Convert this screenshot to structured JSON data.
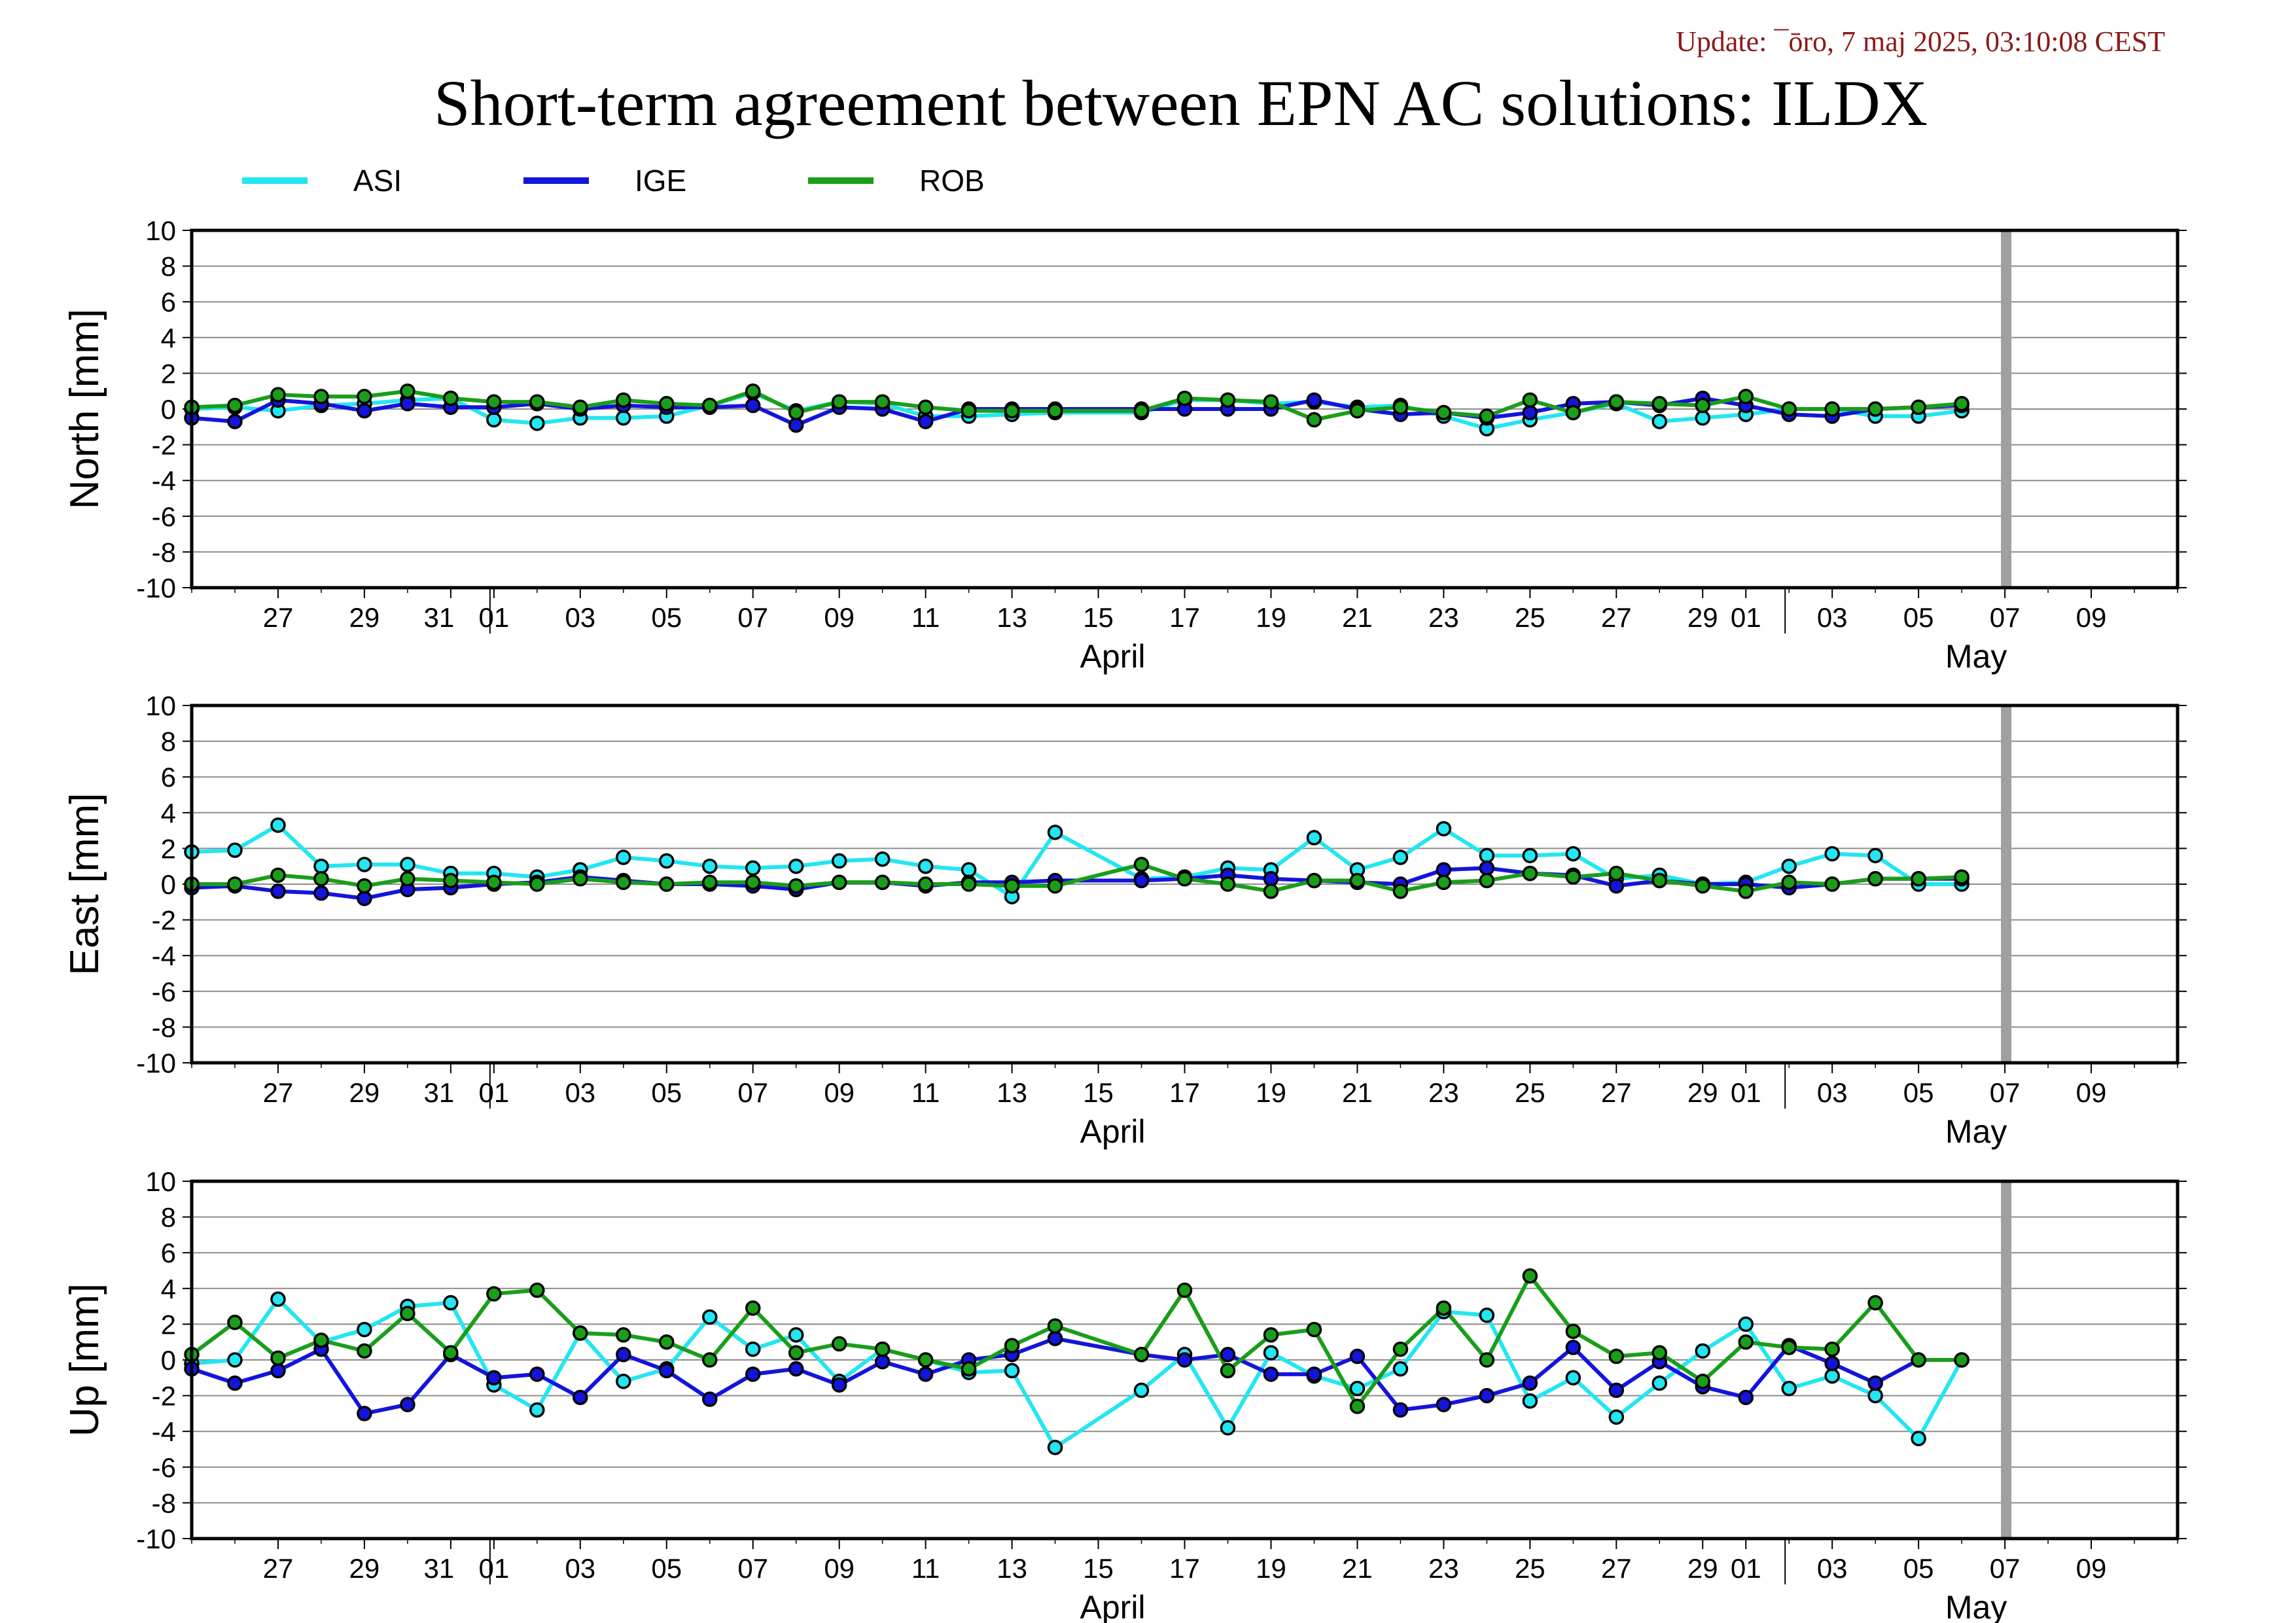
{
  "header": {
    "update": "Update: ¯ōro, 7 maj 2025, 03:10:08 CEST",
    "title": "Short-term agreement between EPN AC solutions: ILDX"
  },
  "legend": [
    {
      "name": "ASI",
      "color": "#22e6f2"
    },
    {
      "name": "IGE",
      "color": "#1414dc"
    },
    {
      "name": "ROB",
      "color": "#1a9e1a"
    }
  ],
  "month_labels": [
    {
      "label": "April",
      "day_index": 21
    },
    {
      "label": "May",
      "day_index": 41
    }
  ],
  "x_ticks": [
    "27",
    "29",
    "31",
    "01",
    "03",
    "05",
    "07",
    "09",
    "11",
    "13",
    "15",
    "17",
    "19",
    "21",
    "23",
    "25",
    "27",
    "29",
    "01",
    "03",
    "05",
    "07",
    "09"
  ],
  "chart_data": [
    {
      "type": "line",
      "ylabel": "North [mm]",
      "ylim": [
        -10,
        10
      ],
      "yticks": [
        10,
        8,
        6,
        4,
        2,
        0,
        -2,
        -4,
        -6,
        -8,
        -10
      ],
      "x_start": "2025-03-25",
      "x_end": "2025-05-10",
      "current_date_marker": "2025-05-06",
      "grid": "horizontal",
      "series": [
        {
          "name": "ASI",
          "x": [
            "03-25",
            "03-26",
            "03-27",
            "03-28",
            "03-29",
            "03-30",
            "03-31",
            "04-01",
            "04-02",
            "04-03",
            "04-04",
            "04-05",
            "04-06",
            "04-07",
            "04-08",
            "04-09",
            "04-10",
            "04-11",
            "04-12",
            "04-13",
            "04-14",
            "04-16",
            "04-17",
            "04-18",
            "04-19",
            "04-20",
            "04-21",
            "04-22",
            "04-23",
            "04-24",
            "04-25",
            "04-26",
            "04-27",
            "04-28",
            "04-29",
            "04-30",
            "05-01",
            "05-02",
            "05-03",
            "05-04",
            "05-05"
          ],
          "values": [
            0.0,
            0.1,
            -0.1,
            0.2,
            0.3,
            0.5,
            0.6,
            -0.6,
            -0.8,
            -0.5,
            -0.5,
            -0.4,
            0.2,
            0.9,
            -0.1,
            0.4,
            0.3,
            -0.4,
            -0.4,
            -0.3,
            -0.2,
            -0.2,
            0.5,
            0.5,
            0.3,
            0.4,
            0.1,
            0.2,
            -0.4,
            -1.1,
            -0.6,
            -0.2,
            0.3,
            -0.7,
            -0.5,
            -0.3,
            0.0,
            0.0,
            -0.4,
            -0.4,
            -0.1
          ]
        },
        {
          "name": "IGE",
          "x": [
            "03-25",
            "03-26",
            "03-27",
            "03-28",
            "03-29",
            "03-30",
            "03-31",
            "04-01",
            "04-02",
            "04-03",
            "04-04",
            "04-05",
            "04-06",
            "04-07",
            "04-08",
            "04-09",
            "04-10",
            "04-11",
            "04-12",
            "04-13",
            "04-14",
            "04-16",
            "04-17",
            "04-18",
            "04-19",
            "04-20",
            "04-21",
            "04-22",
            "04-23",
            "04-24",
            "04-25",
            "04-26",
            "04-27",
            "04-28",
            "04-29",
            "04-30",
            "05-01",
            "05-02",
            "05-03",
            "05-04",
            "05-05"
          ],
          "values": [
            -0.5,
            -0.7,
            0.5,
            0.3,
            -0.1,
            0.3,
            0.1,
            0.1,
            0.3,
            0.0,
            0.2,
            0.1,
            0.1,
            0.2,
            -0.9,
            0.1,
            0.0,
            -0.7,
            0.0,
            0.0,
            0.0,
            0.0,
            0.0,
            0.0,
            0.0,
            0.5,
            0.0,
            -0.3,
            -0.2,
            -0.5,
            -0.2,
            0.3,
            0.4,
            0.2,
            0.6,
            0.2,
            -0.3,
            -0.4,
            0.0,
            0.1,
            0.2
          ]
        },
        {
          "name": "ROB",
          "x": [
            "03-25",
            "03-26",
            "03-27",
            "03-28",
            "03-29",
            "03-30",
            "03-31",
            "04-01",
            "04-02",
            "04-03",
            "04-04",
            "04-05",
            "04-06",
            "04-07",
            "04-08",
            "04-09",
            "04-10",
            "04-11",
            "04-12",
            "04-13",
            "04-14",
            "04-16",
            "04-17",
            "04-18",
            "04-19",
            "04-20",
            "04-21",
            "04-22",
            "04-23",
            "04-24",
            "04-25",
            "04-26",
            "04-27",
            "04-28",
            "04-29",
            "04-30",
            "05-01",
            "05-02",
            "05-03",
            "05-04",
            "05-05"
          ],
          "values": [
            0.1,
            0.2,
            0.8,
            0.7,
            0.7,
            1.0,
            0.6,
            0.4,
            0.4,
            0.1,
            0.5,
            0.3,
            0.2,
            1.0,
            -0.2,
            0.4,
            0.4,
            0.1,
            -0.1,
            -0.1,
            -0.1,
            -0.1,
            0.6,
            0.5,
            0.4,
            -0.6,
            -0.1,
            0.1,
            -0.2,
            -0.4,
            0.5,
            -0.2,
            0.4,
            0.3,
            0.2,
            0.7,
            0.0,
            0.0,
            0.0,
            0.1,
            0.3
          ]
        }
      ]
    },
    {
      "type": "line",
      "ylabel": "East [mm]",
      "ylim": [
        -10,
        10
      ],
      "yticks": [
        10,
        8,
        6,
        4,
        2,
        0,
        -2,
        -4,
        -6,
        -8,
        -10
      ],
      "x_start": "2025-03-25",
      "x_end": "2025-05-10",
      "current_date_marker": "2025-05-06",
      "grid": "horizontal",
      "series": [
        {
          "name": "ASI",
          "x": [
            "03-25",
            "03-26",
            "03-27",
            "03-28",
            "03-29",
            "03-30",
            "03-31",
            "04-01",
            "04-02",
            "04-03",
            "04-04",
            "04-05",
            "04-06",
            "04-07",
            "04-08",
            "04-09",
            "04-10",
            "04-11",
            "04-12",
            "04-13",
            "04-14",
            "04-16",
            "04-17",
            "04-18",
            "04-19",
            "04-20",
            "04-21",
            "04-22",
            "04-23",
            "04-24",
            "04-25",
            "04-26",
            "04-27",
            "04-28",
            "04-29",
            "04-30",
            "05-01",
            "05-02",
            "05-03",
            "05-04",
            "05-05"
          ],
          "values": [
            1.8,
            1.9,
            3.3,
            1.0,
            1.1,
            1.1,
            0.6,
            0.6,
            0.4,
            0.8,
            1.5,
            1.3,
            1.0,
            0.9,
            1.0,
            1.3,
            1.4,
            1.0,
            0.8,
            -0.7,
            2.9,
            0.3,
            0.4,
            0.9,
            0.8,
            2.6,
            0.8,
            1.5,
            3.1,
            1.6,
            1.6,
            1.7,
            0.3,
            0.5,
            0.0,
            0.1,
            1.0,
            1.7,
            1.6,
            0.0,
            0.0
          ]
        },
        {
          "name": "IGE",
          "x": [
            "03-25",
            "03-26",
            "03-27",
            "03-28",
            "03-29",
            "03-30",
            "03-31",
            "04-01",
            "04-02",
            "04-03",
            "04-04",
            "04-05",
            "04-06",
            "04-07",
            "04-08",
            "04-09",
            "04-10",
            "04-11",
            "04-12",
            "04-13",
            "04-14",
            "04-16",
            "04-17",
            "04-18",
            "04-19",
            "04-20",
            "04-21",
            "04-22",
            "04-23",
            "04-24",
            "04-25",
            "04-26",
            "04-27",
            "04-28",
            "04-29",
            "04-30",
            "05-01",
            "05-02",
            "05-03",
            "05-04",
            "05-05"
          ],
          "values": [
            -0.2,
            -0.1,
            -0.4,
            -0.5,
            -0.8,
            -0.3,
            -0.2,
            0.0,
            0.1,
            0.4,
            0.2,
            0.0,
            0.0,
            -0.1,
            -0.3,
            0.1,
            0.1,
            -0.1,
            0.1,
            0.1,
            0.2,
            0.2,
            0.3,
            0.5,
            0.3,
            0.2,
            0.1,
            0.0,
            0.8,
            0.9,
            0.6,
            0.5,
            -0.1,
            0.2,
            0.0,
            0.0,
            -0.2,
            0.0,
            0.3,
            0.3,
            0.3
          ]
        },
        {
          "name": "ROB",
          "x": [
            "03-25",
            "03-26",
            "03-27",
            "03-28",
            "03-29",
            "03-30",
            "03-31",
            "04-01",
            "04-02",
            "04-03",
            "04-04",
            "04-05",
            "04-06",
            "04-07",
            "04-08",
            "04-09",
            "04-10",
            "04-11",
            "04-12",
            "04-13",
            "04-14",
            "04-16",
            "04-17",
            "04-18",
            "04-19",
            "04-20",
            "04-21",
            "04-22",
            "04-23",
            "04-24",
            "04-25",
            "04-26",
            "04-27",
            "04-28",
            "04-29",
            "04-30",
            "05-01",
            "05-02",
            "05-03",
            "05-04",
            "05-05"
          ],
          "values": [
            0.0,
            0.0,
            0.5,
            0.3,
            -0.1,
            0.3,
            0.2,
            0.1,
            0.0,
            0.3,
            0.1,
            0.0,
            0.1,
            0.1,
            -0.1,
            0.1,
            0.1,
            0.0,
            0.0,
            -0.1,
            -0.1,
            1.1,
            0.3,
            0.0,
            -0.4,
            0.2,
            0.2,
            -0.4,
            0.1,
            0.2,
            0.6,
            0.4,
            0.6,
            0.2,
            -0.1,
            -0.4,
            0.1,
            0.0,
            0.3,
            0.3,
            0.4
          ]
        }
      ]
    },
    {
      "type": "line",
      "ylabel": "Up [mm]",
      "ylim": [
        -10,
        10
      ],
      "yticks": [
        10,
        8,
        6,
        4,
        2,
        0,
        -2,
        -4,
        -6,
        -8,
        -10
      ],
      "x_start": "2025-03-25",
      "x_end": "2025-05-10",
      "current_date_marker": "2025-05-06",
      "grid": "horizontal",
      "series": [
        {
          "name": "ASI",
          "x": [
            "03-25",
            "03-26",
            "03-27",
            "03-28",
            "03-29",
            "03-30",
            "03-31",
            "04-01",
            "04-02",
            "04-03",
            "04-04",
            "04-05",
            "04-06",
            "04-07",
            "04-08",
            "04-09",
            "04-10",
            "04-11",
            "04-12",
            "04-13",
            "04-14",
            "04-16",
            "04-17",
            "04-18",
            "04-19",
            "04-20",
            "04-21",
            "04-22",
            "04-23",
            "04-24",
            "04-25",
            "04-26",
            "04-27",
            "04-28",
            "04-29",
            "04-30",
            "05-01",
            "05-02",
            "05-03",
            "05-04",
            "05-05"
          ],
          "values": [
            -0.2,
            0.0,
            3.4,
            1.0,
            1.7,
            3.0,
            3.2,
            -1.4,
            -2.8,
            1.5,
            -1.2,
            -0.5,
            2.4,
            0.6,
            1.4,
            -1.2,
            0.6,
            0.0,
            -0.7,
            -0.6,
            -4.9,
            -1.7,
            0.3,
            -3.8,
            0.4,
            -0.9,
            -1.6,
            -0.5,
            2.7,
            2.5,
            -2.3,
            -1.0,
            -3.2,
            -1.3,
            0.5,
            2.0,
            -1.6,
            -0.9,
            -2.0,
            -4.4,
            0.0
          ]
        },
        {
          "name": "IGE",
          "x": [
            "03-25",
            "03-26",
            "03-27",
            "03-28",
            "03-29",
            "03-30",
            "03-31",
            "04-01",
            "04-02",
            "04-03",
            "04-04",
            "04-05",
            "04-06",
            "04-07",
            "04-08",
            "04-09",
            "04-10",
            "04-11",
            "04-12",
            "04-13",
            "04-14",
            "04-16",
            "04-17",
            "04-18",
            "04-19",
            "04-20",
            "04-21",
            "04-22",
            "04-23",
            "04-24",
            "04-25",
            "04-26",
            "04-27",
            "04-28",
            "04-29",
            "04-30",
            "05-01",
            "05-02",
            "05-03",
            "05-04",
            "05-05"
          ],
          "values": [
            -0.5,
            -1.3,
            -0.6,
            0.6,
            -3.0,
            -2.5,
            0.3,
            -1.0,
            -0.8,
            -2.1,
            0.3,
            -0.6,
            -2.2,
            -0.8,
            -0.5,
            -1.4,
            -0.1,
            -0.8,
            0.0,
            0.3,
            1.2,
            0.3,
            0.0,
            0.3,
            -0.8,
            -0.8,
            0.2,
            -2.8,
            -2.5,
            -2.0,
            -1.3,
            0.7,
            -1.7,
            -0.1,
            -1.5,
            -2.1,
            0.8,
            -0.2,
            -1.3,
            0.0,
            0.0
          ]
        },
        {
          "name": "ROB",
          "x": [
            "03-25",
            "03-26",
            "03-27",
            "03-28",
            "03-29",
            "03-30",
            "03-31",
            "04-01",
            "04-02",
            "04-03",
            "04-04",
            "04-05",
            "04-06",
            "04-07",
            "04-08",
            "04-09",
            "04-10",
            "04-11",
            "04-12",
            "04-13",
            "04-14",
            "04-16",
            "04-17",
            "04-18",
            "04-19",
            "04-20",
            "04-21",
            "04-22",
            "04-23",
            "04-24",
            "04-25",
            "04-26",
            "04-27",
            "04-28",
            "04-29",
            "04-30",
            "05-01",
            "05-02",
            "05-03",
            "05-04",
            "05-05"
          ],
          "values": [
            0.3,
            2.1,
            0.1,
            1.1,
            0.5,
            2.6,
            0.4,
            3.7,
            3.9,
            1.5,
            1.4,
            1.0,
            0.0,
            2.9,
            0.4,
            0.9,
            0.6,
            0.0,
            -0.5,
            0.8,
            1.9,
            0.3,
            3.9,
            -0.6,
            1.4,
            1.7,
            -2.6,
            0.6,
            2.9,
            0.0,
            4.7,
            1.6,
            0.2,
            0.4,
            -1.2,
            1.0,
            0.7,
            0.6,
            3.2,
            0.0,
            0.0
          ]
        }
      ]
    }
  ]
}
